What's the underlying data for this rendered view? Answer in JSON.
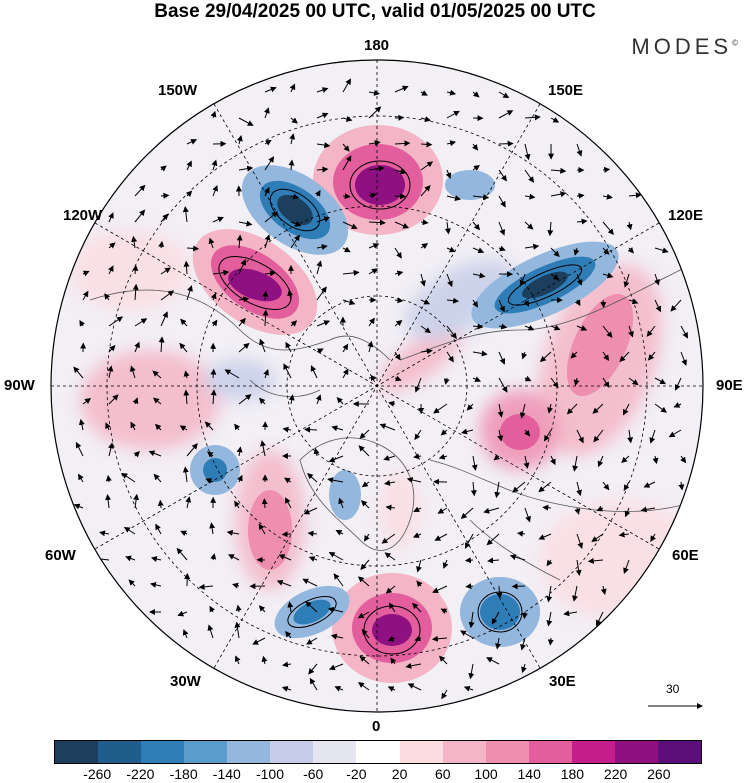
{
  "title": "Base 29/04/2025 00 UTC, valid 01/05/2025 00 UTC",
  "brand": "MODES",
  "brand_mark": "©",
  "longitude_labels": {
    "top": "180",
    "top_left": "150W",
    "top_right": "150E",
    "upper_left": "120W",
    "upper_right": "120E",
    "left": "90W",
    "right": "90E",
    "lower_left": "60W",
    "lower_right": "60E",
    "bottom_left": "30W",
    "bottom_right": "30E",
    "bottom": "0"
  },
  "reference_vector": {
    "value": "30"
  },
  "colorbar": {
    "colors": [
      "#1c3f5e",
      "#1f5d8c",
      "#2f7db7",
      "#5a9ccb",
      "#94b7de",
      "#c5cde8",
      "#e6e6f3",
      "#ffffff",
      "#fbdde2",
      "#f4b5c6",
      "#ee8fb0",
      "#e35e9c",
      "#c51e8a",
      "#8f1080",
      "#5c0f7a"
    ],
    "labels": [
      "-260",
      "-220",
      "-180",
      "-140",
      "-100",
      "-60",
      "-20",
      "20",
      "60",
      "100",
      "140",
      "180",
      "220",
      "260"
    ]
  },
  "anomaly_centers": [
    {
      "sign": "positive",
      "strength": 5,
      "region": "North Pacific near 180"
    },
    {
      "sign": "negative",
      "strength": 5,
      "region": "Alaska / NE Pacific"
    },
    {
      "sign": "positive",
      "strength": 5,
      "region": "Western Canada"
    },
    {
      "sign": "negative",
      "strength": 5,
      "region": "Eastern Siberia"
    },
    {
      "sign": "positive",
      "strength": 5,
      "region": "Eastern Atlantic / Western Europe"
    },
    {
      "sign": "negative",
      "strength": 3,
      "region": "Eastern Europe"
    },
    {
      "sign": "positive",
      "strength": 3,
      "region": "Central Asia"
    },
    {
      "sign": "negative",
      "strength": 3,
      "region": "North Atlantic"
    },
    {
      "sign": "positive",
      "strength": 3,
      "region": "Central North America"
    }
  ]
}
